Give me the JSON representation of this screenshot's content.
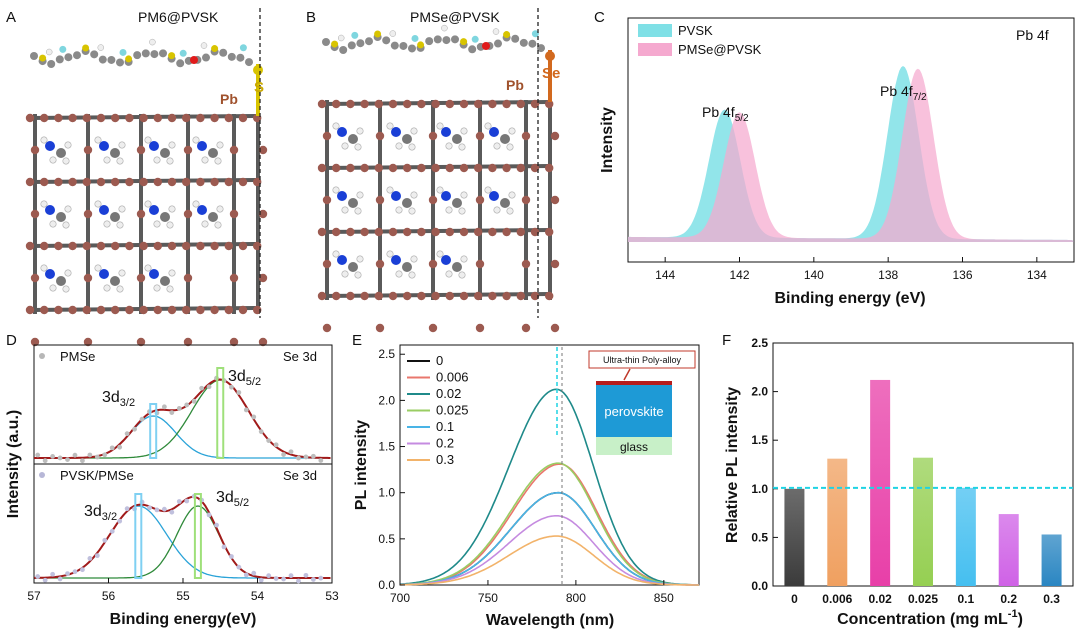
{
  "figure_labels": [
    "A",
    "B",
    "C",
    "D",
    "E",
    "F"
  ],
  "panel_a": {
    "title": "PM6@PVSK",
    "atom_labels": [
      "Pb",
      "S"
    ]
  },
  "panel_b": {
    "title": "PMSe@PVSK",
    "atom_labels": [
      "Pb",
      "Se"
    ]
  },
  "colors": {
    "pvsk_fill": "#7fe0e6",
    "pmse_fill": "#f5a9cf",
    "se_fit": "#a11a1a",
    "se_3d32": "#2aa3d8",
    "se_3d52": "#2f8a3a",
    "frame_bond": "#5a5a5a",
    "frame_atom": "#9c5a50",
    "guide_dash": "#1fd3e3"
  },
  "chart_data": [
    {
      "panel": "C",
      "type": "area",
      "title": "Pb 4f",
      "xlabel": "Binding energy (eV)",
      "ylabel": "Intensity",
      "x_ticks": [
        "144",
        "142",
        "140",
        "138",
        "136",
        "134"
      ],
      "xlim": [
        145,
        133
      ],
      "series": [
        {
          "name": "PVSK",
          "peaks": [
            {
              "center": 142.4,
              "height": 1.0
            },
            {
              "center": 137.6,
              "height": 1.35
            }
          ]
        },
        {
          "name": "PMSe@PVSK",
          "peaks": [
            {
              "center": 142.0,
              "height": 0.98
            },
            {
              "center": 137.2,
              "height": 1.33
            }
          ]
        }
      ],
      "annotations": [
        {
          "text": "Pb 4f",
          "sub": "5/2",
          "x": 142.6
        },
        {
          "text": "Pb 4f",
          "sub": "7/2",
          "x": 137.6
        }
      ]
    },
    {
      "panel": "D",
      "type": "scatter",
      "ylabel": "Intensity (a.u.)",
      "xlabel": "Binding energy(eV)",
      "x_ticks": [
        "57",
        "56",
        "55",
        "54",
        "53"
      ],
      "xlim": [
        57,
        53
      ],
      "subplots": [
        {
          "legend": "PMSe",
          "label": "Se 3d",
          "peak_3d32": {
            "center": 55.4,
            "height": 0.42,
            "width": 0.3
          },
          "peak_3d52": {
            "center": 54.5,
            "height": 0.78,
            "width": 0.38
          },
          "peak_labels": [
            {
              "text": "3d",
              "sub": "3/2"
            },
            {
              "text": "3d",
              "sub": "5/2"
            }
          ]
        },
        {
          "legend": "PVSK/PMSe",
          "label": "Se 3d",
          "peak_3d32": {
            "center": 55.6,
            "height": 0.72,
            "width": 0.38
          },
          "peak_3d52": {
            "center": 54.8,
            "height": 0.72,
            "width": 0.28
          },
          "peak_labels": [
            {
              "text": "3d",
              "sub": "3/2"
            },
            {
              "text": "3d",
              "sub": "5/2"
            }
          ]
        }
      ]
    },
    {
      "panel": "E",
      "type": "line",
      "xlabel": "Wavelength (nm)",
      "ylabel": "PL intensity",
      "xlim": [
        700,
        870
      ],
      "ylim": [
        0,
        2.6
      ],
      "x_ticks": [
        700,
        750,
        800,
        850
      ],
      "y_ticks": [
        "0.0",
        "0.5",
        "1.0",
        "1.5",
        "2.0",
        "2.5"
      ],
      "series": [
        {
          "name": "0",
          "color": "#111111",
          "peak": 1.0,
          "center": 790
        },
        {
          "name": "0.006",
          "color": "#e9776d",
          "peak": 1.31,
          "center": 791
        },
        {
          "name": "0.02",
          "color": "#1f8a8a",
          "peak": 2.12,
          "center": 789
        },
        {
          "name": "0.025",
          "color": "#9acd63",
          "peak": 1.32,
          "center": 790
        },
        {
          "name": "0.1",
          "color": "#49b4e6",
          "peak": 1.0,
          "center": 790
        },
        {
          "name": "0.2",
          "color": "#c58be0",
          "peak": 0.75,
          "center": 789
        },
        {
          "name": "0.3",
          "color": "#f2b36a",
          "peak": 0.53,
          "center": 789
        }
      ],
      "inset": {
        "title": "Ultra-thin Poly-alloy",
        "layers": [
          "perovskite",
          "glass"
        ]
      }
    },
    {
      "panel": "F",
      "type": "bar",
      "categories": [
        "0",
        "0.006",
        "0.02",
        "0.025",
        "0.1",
        "0.2",
        "0.3"
      ],
      "values": [
        1.0,
        1.31,
        2.12,
        1.32,
        1.01,
        0.74,
        0.53
      ],
      "colors": [
        "#3b3b3b",
        "#f0a060",
        "#e83fa8",
        "#95cf52",
        "#45bff0",
        "#cf62e6",
        "#2a86c2"
      ],
      "xlabel": "Concentration (mg mL",
      "xlabel_sup": "-1",
      "xlabel_end": ")",
      "ylabel": "Relative PL intensity",
      "ylim": [
        0,
        2.5
      ],
      "y_ticks": [
        "0.0",
        "0.5",
        "1.0",
        "1.5",
        "2.0",
        "2.5"
      ],
      "reference_line": 1.01
    }
  ]
}
